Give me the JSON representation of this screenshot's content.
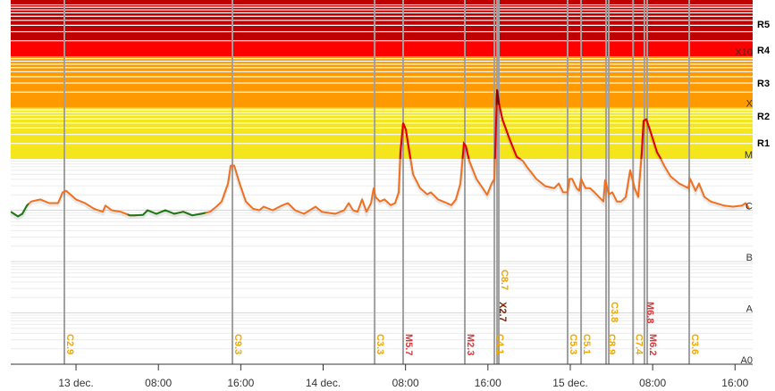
{
  "chart_data": {
    "type": "line",
    "title": "",
    "xlabel": "",
    "ylabel": "",
    "x_units": "hours since 13 dec. 00:00",
    "y_units": "log10 X-ray flux (W/m2)",
    "xlim": [
      -6.34,
      65.71
    ],
    "ylim": [
      -9,
      -2.9
    ],
    "x_ticks": [
      {
        "h": 0,
        "label": "13 dec."
      },
      {
        "h": 8,
        "label": "08:00"
      },
      {
        "h": 16,
        "label": "16:00"
      },
      {
        "h": 24,
        "label": "14 dec."
      },
      {
        "h": 32,
        "label": "08:00"
      },
      {
        "h": 40,
        "label": "16:00"
      },
      {
        "h": 48,
        "label": "15 dec."
      },
      {
        "h": 56,
        "label": "08:00"
      },
      {
        "h": 64,
        "label": "16:00"
      }
    ],
    "class_levels": [
      {
        "label": "A0",
        "log": -9
      },
      {
        "label": "A",
        "log": -8
      },
      {
        "label": "B",
        "log": -7
      },
      {
        "label": "C",
        "log": -6
      },
      {
        "label": "M",
        "log": -5
      },
      {
        "label": "X",
        "log": -4
      },
      {
        "label": "X10",
        "log": -3
      }
    ],
    "radio_blackout_levels": [
      "R1",
      "R2",
      "R3",
      "R4",
      "R5"
    ],
    "band_colors": {
      "M": "#f5e51c",
      "X": "#ff9900",
      "X10": "#ff0000",
      "X20": "#c00000"
    },
    "series_colors": {
      "normal": "#f07020",
      "above_M": "#e00000",
      "above_X": "#800000",
      "secondary": "#1a7a1a"
    },
    "flare_colors": {
      "C": "#f0a800",
      "M": "#d83a3a",
      "X": "#7a2000"
    },
    "secondary_ranges": [
      [
        -6.34,
        -4.6
      ],
      [
        5.0,
        12.6
      ]
    ],
    "flux": [
      [
        -6.34,
        -6.03
      ],
      [
        -5.64,
        -6.12
      ],
      [
        -5.21,
        -6.07
      ],
      [
        -4.77,
        -5.91
      ],
      [
        -4.34,
        -5.83
      ],
      [
        -3.47,
        -5.79
      ],
      [
        -2.6,
        -5.86
      ],
      [
        -1.74,
        -5.86
      ],
      [
        -1.3,
        -5.65
      ],
      [
        -0.95,
        -5.62
      ],
      [
        0,
        -5.79
      ],
      [
        0.87,
        -5.86
      ],
      [
        1.74,
        -5.97
      ],
      [
        2.6,
        -6.03
      ],
      [
        2.86,
        -5.91
      ],
      [
        3.47,
        -6.0
      ],
      [
        4.34,
        -6.03
      ],
      [
        5.21,
        -6.1
      ],
      [
        5.64,
        -6.1
      ],
      [
        6.51,
        -6.09
      ],
      [
        6.94,
        -6.0
      ],
      [
        7.81,
        -6.07
      ],
      [
        8.68,
        -6.0
      ],
      [
        9.55,
        -6.07
      ],
      [
        10.42,
        -6.03
      ],
      [
        11.28,
        -6.1
      ],
      [
        12.15,
        -6.07
      ],
      [
        13.02,
        -6.03
      ],
      [
        13.63,
        -5.93
      ],
      [
        14.15,
        -5.83
      ],
      [
        14.76,
        -5.48
      ],
      [
        15.02,
        -5.13
      ],
      [
        15.36,
        -5.13
      ],
      [
        15.89,
        -5.48
      ],
      [
        16.49,
        -5.83
      ],
      [
        17.19,
        -5.97
      ],
      [
        17.8,
        -6.0
      ],
      [
        18.23,
        -5.93
      ],
      [
        19.1,
        -6.0
      ],
      [
        19.97,
        -5.91
      ],
      [
        20.57,
        -5.86
      ],
      [
        21.27,
        -6.0
      ],
      [
        22.14,
        -6.07
      ],
      [
        23.26,
        -5.93
      ],
      [
        23.87,
        -6.03
      ],
      [
        25.17,
        -6.07
      ],
      [
        26.04,
        -6.0
      ],
      [
        26.48,
        -5.86
      ],
      [
        26.91,
        -6.0
      ],
      [
        27.34,
        -6.03
      ],
      [
        27.78,
        -5.79
      ],
      [
        28.21,
        -6.03
      ],
      [
        28.65,
        -5.86
      ],
      [
        28.91,
        -5.57
      ],
      [
        29.08,
        -5.74
      ],
      [
        29.51,
        -5.83
      ],
      [
        29.95,
        -5.79
      ],
      [
        30.56,
        -5.9
      ],
      [
        30.99,
        -5.86
      ],
      [
        31.34,
        -5.65
      ],
      [
        31.51,
        -4.87
      ],
      [
        31.77,
        -4.3
      ],
      [
        32.03,
        -4.43
      ],
      [
        32.38,
        -4.87
      ],
      [
        32.73,
        -5.3
      ],
      [
        33.42,
        -5.57
      ],
      [
        34.11,
        -5.69
      ],
      [
        34.46,
        -5.65
      ],
      [
        35.16,
        -5.79
      ],
      [
        36.02,
        -5.86
      ],
      [
        36.46,
        -5.9
      ],
      [
        36.89,
        -5.79
      ],
      [
        37.33,
        -5.48
      ],
      [
        37.67,
        -4.7
      ],
      [
        37.85,
        -4.75
      ],
      [
        38.19,
        -5.04
      ],
      [
        38.89,
        -5.39
      ],
      [
        39.5,
        -5.57
      ],
      [
        39.93,
        -5.7
      ],
      [
        40.36,
        -5.48
      ],
      [
        40.63,
        -5.39
      ],
      [
        40.89,
        -3.65
      ],
      [
        41.06,
        -3.91
      ],
      [
        41.41,
        -4.23
      ],
      [
        42.1,
        -4.61
      ],
      [
        42.8,
        -4.96
      ],
      [
        43.4,
        -5.04
      ],
      [
        43.84,
        -5.17
      ],
      [
        44.7,
        -5.39
      ],
      [
        45.57,
        -5.53
      ],
      [
        46.44,
        -5.57
      ],
      [
        46.88,
        -5.48
      ],
      [
        47.31,
        -5.65
      ],
      [
        47.74,
        -5.65
      ],
      [
        47.92,
        -5.39
      ],
      [
        48.18,
        -5.39
      ],
      [
        48.61,
        -5.57
      ],
      [
        48.87,
        -5.62
      ],
      [
        49.05,
        -5.39
      ],
      [
        49.48,
        -5.57
      ],
      [
        49.91,
        -5.57
      ],
      [
        50.35,
        -5.65
      ],
      [
        50.78,
        -5.74
      ],
      [
        51.22,
        -5.83
      ],
      [
        51.39,
        -5.41
      ],
      [
        51.74,
        -5.69
      ],
      [
        52.08,
        -5.65
      ],
      [
        52.52,
        -5.83
      ],
      [
        52.95,
        -5.83
      ],
      [
        53.39,
        -5.74
      ],
      [
        53.82,
        -5.22
      ],
      [
        54.25,
        -5.57
      ],
      [
        54.6,
        -5.74
      ],
      [
        54.95,
        -4.87
      ],
      [
        55.12,
        -4.26
      ],
      [
        55.38,
        -4.23
      ],
      [
        55.73,
        -4.43
      ],
      [
        56.42,
        -4.87
      ],
      [
        56.77,
        -4.99
      ],
      [
        57.12,
        -5.13
      ],
      [
        57.73,
        -5.34
      ],
      [
        58.59,
        -5.48
      ],
      [
        59.46,
        -5.57
      ],
      [
        59.64,
        -5.39
      ],
      [
        60.16,
        -5.62
      ],
      [
        60.5,
        -5.48
      ],
      [
        61.02,
        -5.74
      ],
      [
        61.63,
        -5.83
      ],
      [
        62.93,
        -5.91
      ],
      [
        63.8,
        -5.93
      ],
      [
        64.67,
        -5.91
      ],
      [
        65.02,
        -5.86
      ],
      [
        65.36,
        -5.97
      ]
    ],
    "flares": [
      {
        "h": -1.13,
        "label": "C2.9",
        "class": "C"
      },
      {
        "h": 15.19,
        "label": "C9.3",
        "class": "C"
      },
      {
        "h": 29.0,
        "label": "C3.3",
        "class": "C"
      },
      {
        "h": 31.77,
        "label": "M5.7",
        "class": "M"
      },
      {
        "h": 37.76,
        "label": "M2.3",
        "class": "M"
      },
      {
        "h": 40.63,
        "label": "C4.1",
        "class": "C"
      },
      {
        "h": 40.89,
        "label": "X2.7",
        "class": "X"
      },
      {
        "h": 41.06,
        "label": "C8.7",
        "class": "C"
      },
      {
        "h": 47.74,
        "label": "C5.3",
        "class": "C"
      },
      {
        "h": 49.05,
        "label": "C5.1",
        "class": "C"
      },
      {
        "h": 51.48,
        "label": "C8.9",
        "class": "C"
      },
      {
        "h": 51.74,
        "label": "C3.8",
        "class": "C"
      },
      {
        "h": 54.1,
        "label": "C7.4",
        "class": "C"
      },
      {
        "h": 55.2,
        "label": "M6.8",
        "class": "M"
      },
      {
        "h": 55.47,
        "label": "M6.2",
        "class": "M"
      },
      {
        "h": 59.55,
        "label": "C3.6",
        "class": "C"
      }
    ]
  }
}
